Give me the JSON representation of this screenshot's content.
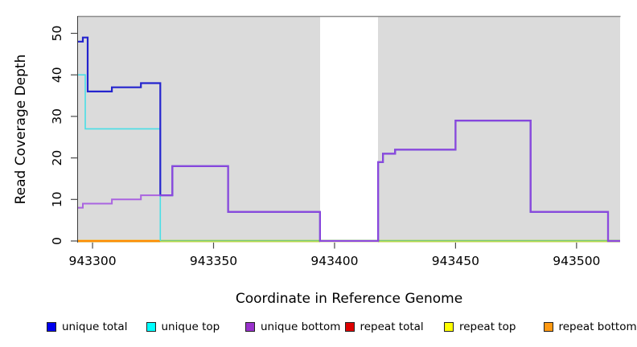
{
  "chart_data": {
    "type": "line",
    "step": true,
    "title": "",
    "xlabel": "Coordinate in Reference Genome",
    "ylabel": "Read Coverage Depth",
    "xlim": [
      943294,
      943518
    ],
    "ylim": [
      0,
      54
    ],
    "x_ticks": [
      943300,
      943350,
      943400,
      943450,
      943500
    ],
    "y_ticks": [
      0,
      10,
      20,
      30,
      40,
      50
    ],
    "grid": false,
    "legend_position": "bottom",
    "masked_region": {
      "from": 943394,
      "to": 943418
    },
    "series": [
      {
        "name": "unique total",
        "color": "#0000EE",
        "line_color": "#2424CE",
        "width": 2.2,
        "end": 943518,
        "points": [
          [
            943294,
            48
          ],
          [
            943296,
            49
          ],
          [
            943298,
            36
          ],
          [
            943308,
            37
          ],
          [
            943320,
            38
          ],
          [
            943328,
            11
          ],
          [
            943333,
            18
          ],
          [
            943356,
            7
          ],
          [
            943394,
            0
          ],
          [
            943418,
            19
          ],
          [
            943420,
            21
          ],
          [
            943425,
            22
          ],
          [
            943450,
            29
          ],
          [
            943481,
            7
          ],
          [
            943513,
            0
          ]
        ]
      },
      {
        "name": "unique top",
        "color": "#00FFFF",
        "line_color": "#4ADEE6",
        "width": 1.6,
        "end": 943328,
        "points": [
          [
            943294,
            40
          ],
          [
            943297,
            27
          ],
          [
            943328,
            0
          ]
        ]
      },
      {
        "name": "unique bottom",
        "color": "#9932CC",
        "line_color": "#A14FE0",
        "width": 2.0,
        "opacity": 0.85,
        "end": 943518,
        "points": [
          [
            943294,
            8
          ],
          [
            943296,
            9
          ],
          [
            943308,
            10
          ],
          [
            943320,
            11
          ],
          [
            943333,
            18
          ],
          [
            943356,
            7
          ],
          [
            943394,
            0
          ],
          [
            943418,
            19
          ],
          [
            943420,
            21
          ],
          [
            943425,
            22
          ],
          [
            943450,
            29
          ],
          [
            943481,
            7
          ],
          [
            943513,
            0
          ]
        ]
      },
      {
        "name": "repeat total",
        "color": "#DD0000",
        "line_color": "#DD0000",
        "width": 2.0,
        "end": 943518,
        "points": [
          [
            943294,
            0
          ]
        ]
      },
      {
        "name": "repeat top",
        "color": "#FFFF00",
        "line_color": "#FFFF00",
        "width": 2.4,
        "end": 943518,
        "points": [
          [
            943294,
            0
          ]
        ]
      },
      {
        "name": "repeat bottom",
        "color": "#FF9912",
        "line_color": "#FF8C00",
        "width": 2.6,
        "end": 943328,
        "points": [
          [
            943294,
            0
          ]
        ]
      }
    ],
    "baseline_overlap_segment": {
      "from": 943328,
      "to": 943518,
      "color": "#7CC87C"
    }
  },
  "colors": {
    "panel": "#DBDBDB",
    "masked": "#FFFFFF",
    "top_border": "#8C8C8C",
    "axis_line": "#3C3C3C",
    "tick": "#4A4A4A",
    "text": "#000000"
  }
}
